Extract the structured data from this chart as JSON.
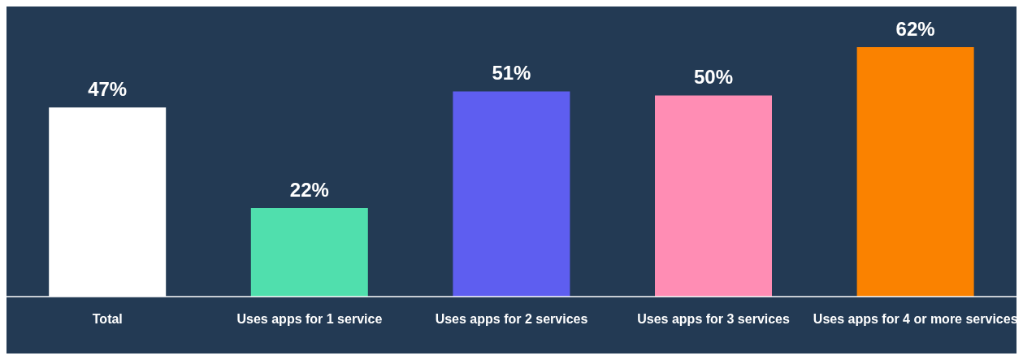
{
  "chart_data": {
    "type": "bar",
    "categories": [
      "Total",
      "Uses apps for 1 service",
      "Uses apps for 2 services",
      "Uses apps for 3 services",
      "Uses apps for 4 or more services"
    ],
    "values": [
      47,
      22,
      51,
      50,
      62
    ],
    "colors": [
      "#ffffff",
      "#50dfad",
      "#5e5ef0",
      "#ff8db4",
      "#fa8200"
    ],
    "value_labels": [
      "47%",
      "22%",
      "51%",
      "50%",
      "62%"
    ]
  }
}
